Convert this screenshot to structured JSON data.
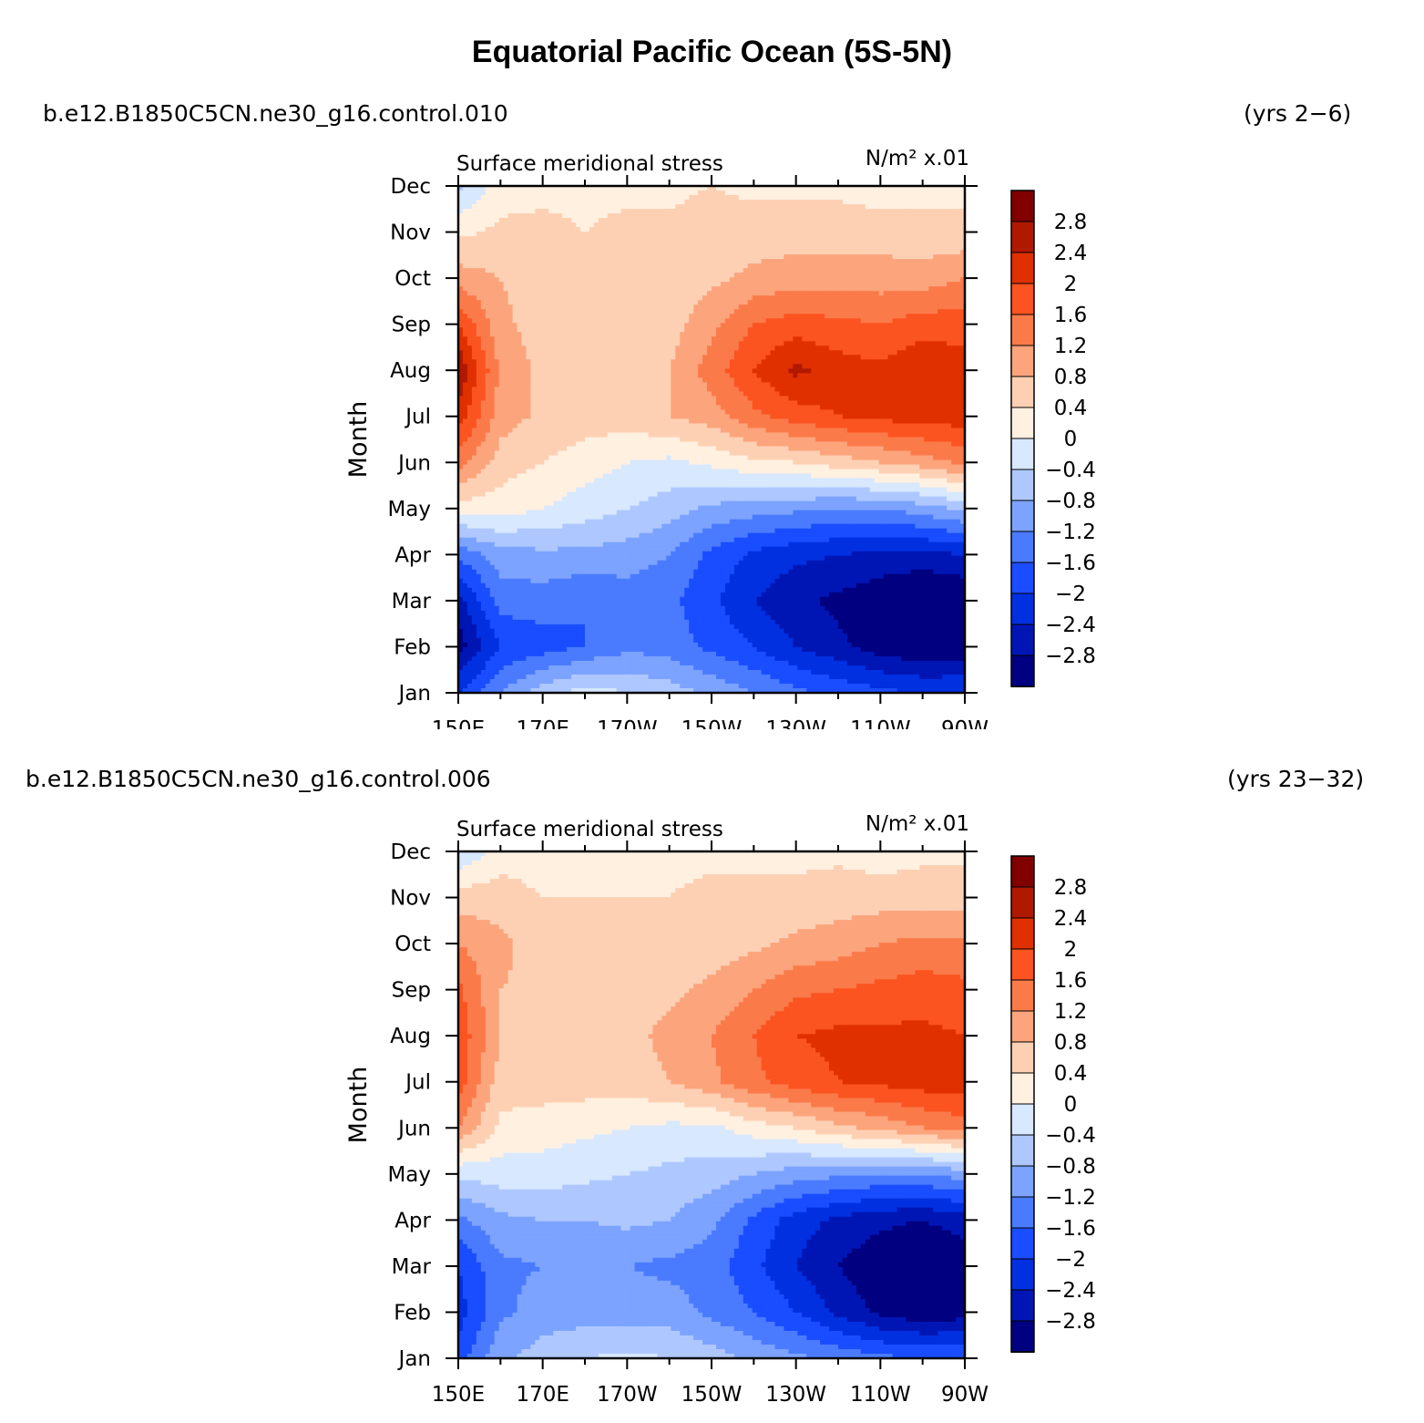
{
  "title": "Equatorial Pacific Ocean (5S-5N)",
  "colors": {
    "levels": [
      -2.8,
      -2.4,
      -2,
      -1.6,
      -1.2,
      -0.8,
      -0.4,
      0,
      0.4,
      0.8,
      1.2,
      1.6,
      2,
      2.4,
      2.8
    ],
    "fills": [
      "#000080",
      "#0016b4",
      "#0030e0",
      "#1a4dff",
      "#4a7bff",
      "#7ca3ff",
      "#aec8ff",
      "#d7e8ff",
      "#fff0e0",
      "#fdd0b4",
      "#fca47c",
      "#fb7a4a",
      "#fb5420",
      "#e03000",
      "#b01800",
      "#800000"
    ]
  },
  "chart_data": [
    {
      "type": "heatmap",
      "case_label": "b.e12.B1850C5CN.ne30_g16.control.010",
      "years_label": "(yrs 2−6)",
      "left_title": "Surface meridional stress",
      "right_title": "N/m² x.01",
      "ylabel": "Month",
      "x_tick_labels": [
        "150E",
        "170E",
        "170W",
        "150W",
        "130W",
        "110W",
        "90W"
      ],
      "y_tick_labels": [
        "Jan",
        "Feb",
        "Mar",
        "Apr",
        "May",
        "Jun",
        "Jul",
        "Aug",
        "Sep",
        "Oct",
        "Nov",
        "Dec"
      ],
      "colorbar_labels": [
        "2.8",
        "2.4",
        "2",
        "1.6",
        "1.2",
        "0.8",
        "0.4",
        "0",
        "−0.4",
        "−0.8",
        "−1.2",
        "−1.6",
        "−2",
        "−2.4",
        "−2.8"
      ],
      "x": [
        150,
        160,
        170,
        180,
        190,
        200,
        210,
        220,
        230,
        240,
        250,
        260,
        270
      ],
      "y": [
        "Jan",
        "Feb",
        "Mar",
        "Apr",
        "May",
        "Jun",
        "Jul",
        "Aug",
        "Sep",
        "Oct",
        "Nov",
        "Dec"
      ],
      "z": [
        [
          -2.0,
          -1.2,
          -0.6,
          -0.2,
          -0.4,
          -0.6,
          -0.9,
          -1.2,
          -1.5,
          -1.7,
          -1.9,
          -2.0,
          -2.0
        ],
        [
          -3.0,
          -2.0,
          -1.8,
          -1.6,
          -1.3,
          -1.4,
          -1.7,
          -2.0,
          -2.4,
          -2.7,
          -3.0,
          -3.2,
          -3.1
        ],
        [
          -2.6,
          -1.4,
          -1.4,
          -1.6,
          -1.4,
          -1.5,
          -1.9,
          -2.4,
          -2.7,
          -2.9,
          -3.1,
          -3.4,
          -3.2
        ],
        [
          -1.5,
          -1.0,
          -0.9,
          -0.9,
          -1.0,
          -1.2,
          -1.7,
          -2.1,
          -2.3,
          -2.4,
          -2.5,
          -2.5,
          -2.4
        ],
        [
          0.2,
          0.2,
          0.0,
          -0.2,
          -0.4,
          -0.6,
          -0.9,
          -1.0,
          -1.1,
          -1.2,
          -1.2,
          -1.0,
          -0.7
        ],
        [
          1.4,
          0.6,
          0.4,
          0.2,
          0.0,
          -0.1,
          0.1,
          0.3,
          0.4,
          0.6,
          0.8,
          1.0,
          1.3
        ],
        [
          2.2,
          1.0,
          0.7,
          0.6,
          0.6,
          0.8,
          1.0,
          1.5,
          1.8,
          2.0,
          2.1,
          2.2,
          2.2
        ],
        [
          2.8,
          1.1,
          0.7,
          0.6,
          0.6,
          0.8,
          1.4,
          2.0,
          2.5,
          2.2,
          2.1,
          2.4,
          2.2
        ],
        [
          2.0,
          0.9,
          0.6,
          0.5,
          0.5,
          0.6,
          1.1,
          1.6,
          1.8,
          1.7,
          1.6,
          1.8,
          1.8
        ],
        [
          1.0,
          0.8,
          0.6,
          0.5,
          0.4,
          0.5,
          0.7,
          0.9,
          1.0,
          1.0,
          1.0,
          1.0,
          1.2
        ],
        [
          0.3,
          0.5,
          0.5,
          0.4,
          0.5,
          0.5,
          0.6,
          0.6,
          0.6,
          0.6,
          0.6,
          0.5,
          0.5
        ],
        [
          -0.5,
          0.2,
          0.3,
          0.3,
          0.3,
          0.3,
          0.4,
          0.3,
          0.3,
          0.3,
          0.2,
          0.3,
          0.3
        ]
      ]
    },
    {
      "type": "heatmap",
      "case_label": "b.e12.B1850C5CN.ne30_g16.control.006",
      "years_label": "(yrs 23−32)",
      "left_title": "Surface meridional stress",
      "right_title": "N/m² x.01",
      "ylabel": "Month",
      "x_tick_labels": [
        "150E",
        "170E",
        "170W",
        "150W",
        "130W",
        "110W",
        "90W"
      ],
      "y_tick_labels": [
        "Jan",
        "Feb",
        "Mar",
        "Apr",
        "May",
        "Jun",
        "Jul",
        "Aug",
        "Sep",
        "Oct",
        "Nov",
        "Dec"
      ],
      "colorbar_labels": [
        "2.8",
        "2.4",
        "2",
        "1.6",
        "1.2",
        "0.8",
        "0.4",
        "0",
        "−0.4",
        "−0.8",
        "−1.2",
        "−1.6",
        "−2",
        "−2.4",
        "−2.8"
      ],
      "x": [
        150,
        160,
        170,
        180,
        190,
        200,
        210,
        220,
        230,
        240,
        250,
        260,
        270
      ],
      "y": [
        "Jan",
        "Feb",
        "Mar",
        "Apr",
        "May",
        "Jun",
        "Jul",
        "Aug",
        "Sep",
        "Oct",
        "Nov",
        "Dec"
      ],
      "z": [
        [
          -1.8,
          -0.9,
          -0.6,
          -0.4,
          -0.3,
          -0.4,
          -0.6,
          -0.9,
          -1.1,
          -1.3,
          -1.5,
          -1.6,
          -1.6
        ],
        [
          -2.2,
          -1.3,
          -1.0,
          -1.0,
          -1.0,
          -1.0,
          -1.3,
          -1.6,
          -2.0,
          -2.5,
          -2.9,
          -3.1,
          -3.0
        ],
        [
          -2.0,
          -1.3,
          -1.2,
          -1.2,
          -1.2,
          -1.3,
          -1.4,
          -1.9,
          -2.4,
          -2.8,
          -3.1,
          -3.3,
          -3.1
        ],
        [
          -1.3,
          -0.9,
          -0.8,
          -0.8,
          -0.7,
          -0.8,
          -1.1,
          -1.7,
          -2.2,
          -2.5,
          -2.7,
          -2.8,
          -2.6
        ],
        [
          -0.3,
          -0.2,
          -0.2,
          -0.3,
          -0.4,
          -0.5,
          -0.6,
          -0.8,
          -1.0,
          -1.1,
          -1.2,
          -1.2,
          -1.0
        ],
        [
          1.2,
          0.3,
          0.2,
          0.1,
          0.0,
          -0.1,
          -0.1,
          0.2,
          0.4,
          0.7,
          0.9,
          1.2,
          1.4
        ],
        [
          1.8,
          0.6,
          0.6,
          0.6,
          0.6,
          0.8,
          1.1,
          1.5,
          1.8,
          2.0,
          2.1,
          2.2,
          2.2
        ],
        [
          1.9,
          0.8,
          0.8,
          0.7,
          0.7,
          0.9,
          1.2,
          1.6,
          2.0,
          2.1,
          2.1,
          2.1,
          2.0
        ],
        [
          1.7,
          0.8,
          0.7,
          0.6,
          0.6,
          0.7,
          0.9,
          1.2,
          1.5,
          1.6,
          1.7,
          1.8,
          1.7
        ],
        [
          1.2,
          0.9,
          0.6,
          0.6,
          0.5,
          0.5,
          0.6,
          0.7,
          0.9,
          1.0,
          1.2,
          1.3,
          1.3
        ],
        [
          0.6,
          0.6,
          0.4,
          0.4,
          0.4,
          0.4,
          0.5,
          0.5,
          0.5,
          0.6,
          0.6,
          0.6,
          0.6
        ],
        [
          -0.4,
          0.2,
          0.2,
          0.2,
          0.3,
          0.3,
          0.3,
          0.3,
          0.3,
          0.3,
          0.2,
          0.3,
          0.3
        ]
      ]
    }
  ]
}
